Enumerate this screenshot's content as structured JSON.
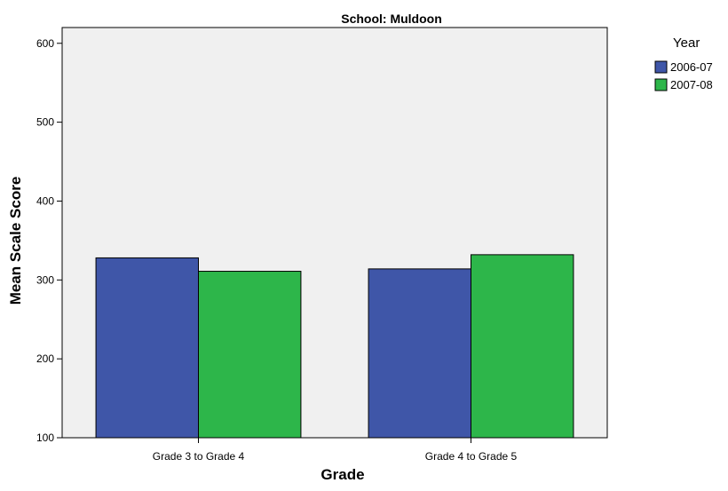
{
  "chart_data": {
    "type": "bar",
    "title": "School: Muldoon",
    "xlabel": "Grade",
    "ylabel": "Mean Scale Score",
    "categories": [
      "Grade 3 to Grade 4",
      "Grade 4 to Grade 5"
    ],
    "series": [
      {
        "name": "2006-07",
        "color": "#3f56a8",
        "values": [
          328,
          314
        ]
      },
      {
        "name": "2007-08",
        "color": "#2db64a",
        "values": [
          311,
          332
        ]
      }
    ],
    "ylim": [
      100,
      620
    ],
    "yticks": [
      100,
      200,
      300,
      400,
      500,
      600
    ],
    "grid": false,
    "legend": {
      "title": "Year",
      "position": "top-right"
    },
    "plot_background": "#f0f0f0"
  }
}
